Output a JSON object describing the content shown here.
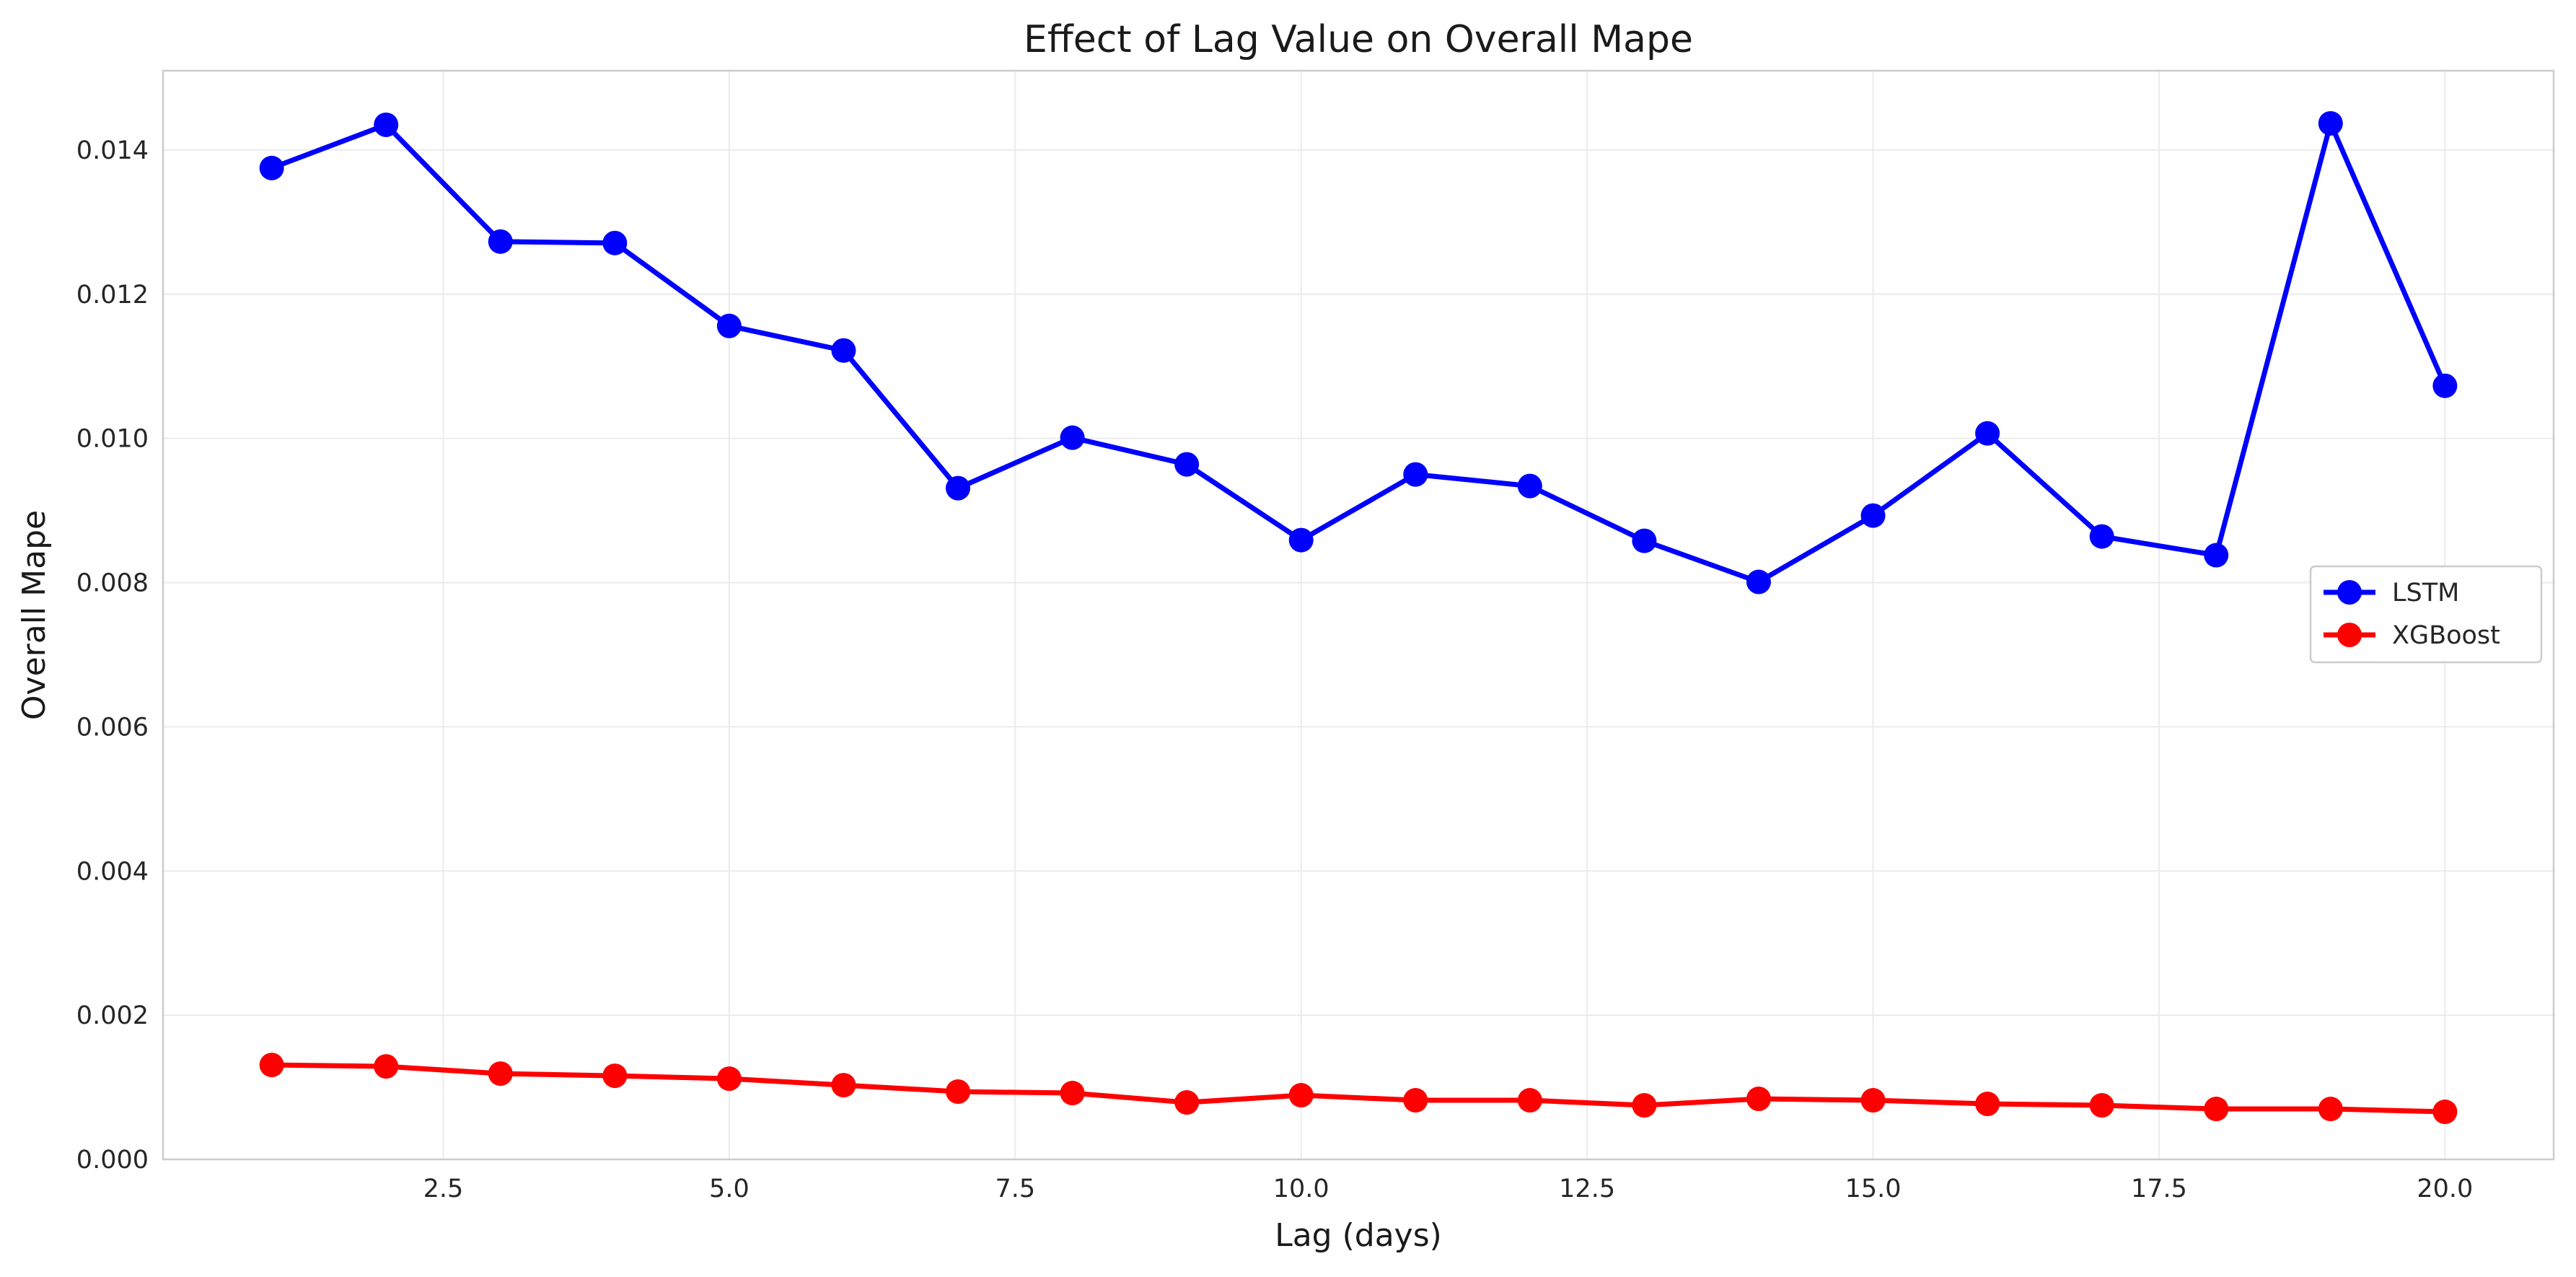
{
  "chart_data": {
    "type": "line",
    "title": "Effect of Lag Value on Overall Mape",
    "xlabel": "Lag (days)",
    "ylabel": "Overall Mape",
    "x": [
      1,
      2,
      3,
      4,
      5,
      6,
      7,
      8,
      9,
      10,
      11,
      12,
      13,
      14,
      15,
      16,
      17,
      18,
      19,
      20
    ],
    "xlim": [
      0.05,
      20.95
    ],
    "ylim": [
      0,
      0.0151
    ],
    "xticks": [
      2.5,
      5.0,
      7.5,
      10.0,
      12.5,
      15.0,
      17.5,
      20.0
    ],
    "xtick_labels": [
      "2.5",
      "5.0",
      "7.5",
      "10.0",
      "12.5",
      "15.0",
      "17.5",
      "20.0"
    ],
    "yticks": [
      0,
      0.002,
      0.004,
      0.006,
      0.008,
      0.01,
      0.012,
      0.014
    ],
    "ytick_labels": [
      "0.000",
      "0.002",
      "0.004",
      "0.006",
      "0.008",
      "0.010",
      "0.012",
      "0.014"
    ],
    "grid": true,
    "legend_position": "center-right",
    "series": [
      {
        "name": "LSTM",
        "color": "#0000ff",
        "marker": "circle",
        "values": [
          0.01375,
          0.01435,
          0.01273,
          0.01271,
          0.01156,
          0.01122,
          0.00931,
          0.01001,
          0.00964,
          0.00859,
          0.0095,
          0.00934,
          0.00858,
          0.00801,
          0.00893,
          0.01007,
          0.00864,
          0.00838,
          0.01437,
          0.01073
        ]
      },
      {
        "name": "XGBoost",
        "color": "#ff0000",
        "marker": "circle",
        "values": [
          0.00131,
          0.00129,
          0.00119,
          0.00116,
          0.00112,
          0.00103,
          0.00094,
          0.00092,
          0.00079,
          0.00089,
          0.00082,
          0.00082,
          0.00075,
          0.00084,
          0.00082,
          0.00077,
          0.00075,
          0.0007,
          0.0007,
          0.00066
        ]
      }
    ]
  }
}
